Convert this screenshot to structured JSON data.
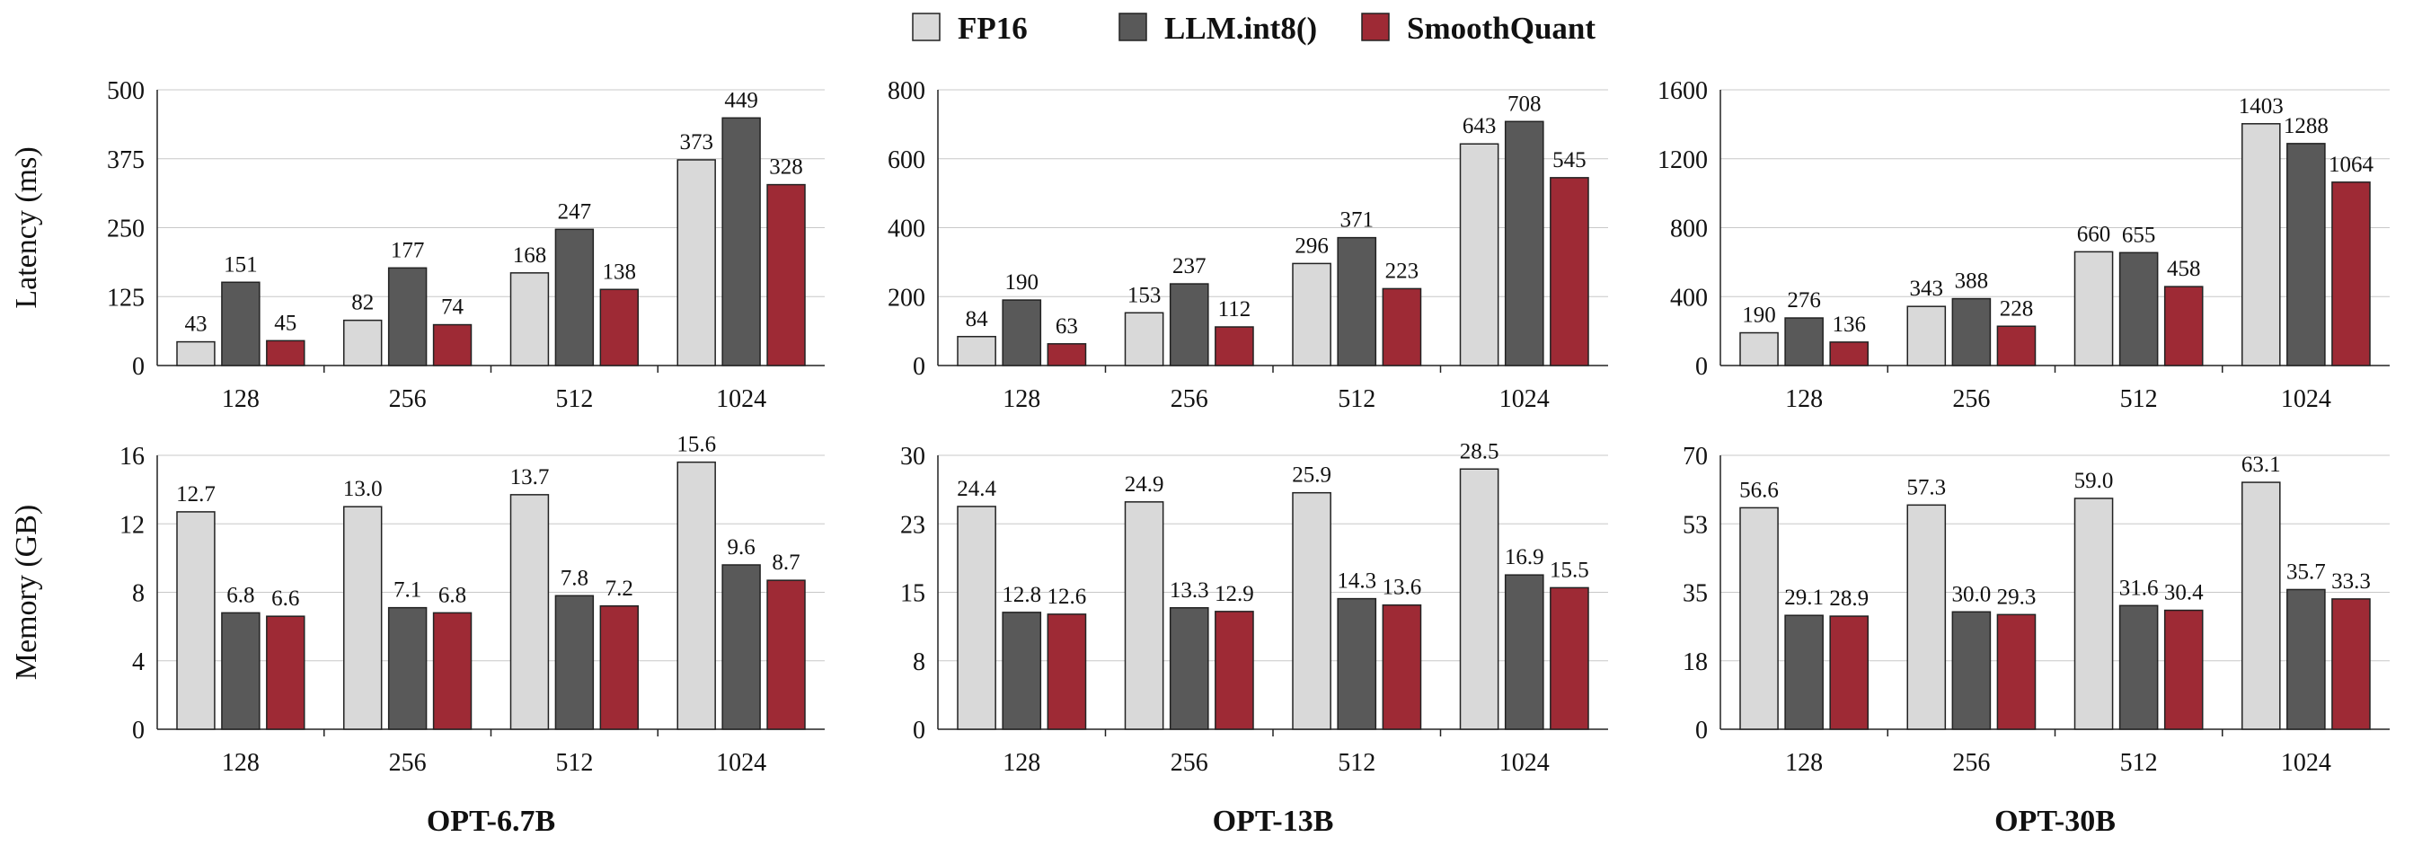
{
  "legend": {
    "items": [
      {
        "name": "FP16",
        "color": "#d9d9d9"
      },
      {
        "name": "LLM.int8()",
        "color": "#595959"
      },
      {
        "name": "SmoothQuant",
        "color": "#9e2a35"
      }
    ]
  },
  "chart_data": [
    {
      "type": "bar",
      "row": "latency",
      "model": "OPT-6.7B",
      "title": "",
      "ylabel": "Latency (ms)",
      "ylim": [
        0,
        500
      ],
      "yticks": [
        0,
        125,
        250,
        375,
        500
      ],
      "ytick_labels": [
        "0",
        "125",
        "250",
        "375",
        "500"
      ],
      "categories": [
        "128",
        "256",
        "512",
        "1024"
      ],
      "series": [
        {
          "name": "FP16",
          "values": [
            43,
            82,
            168,
            373
          ],
          "labels": [
            "43",
            "82",
            "168",
            "373"
          ]
        },
        {
          "name": "LLM.int8()",
          "values": [
            151,
            177,
            247,
            449
          ],
          "labels": [
            "151",
            "177",
            "247",
            "449"
          ]
        },
        {
          "name": "SmoothQuant",
          "values": [
            45,
            74,
            138,
            328
          ],
          "labels": [
            "45",
            "74",
            "138",
            "328"
          ]
        }
      ]
    },
    {
      "type": "bar",
      "row": "latency",
      "model": "OPT-13B",
      "title": "",
      "ylabel": "",
      "ylim": [
        0,
        800
      ],
      "yticks": [
        0,
        200,
        400,
        600,
        800
      ],
      "ytick_labels": [
        "0",
        "200",
        "400",
        "600",
        "800"
      ],
      "categories": [
        "128",
        "256",
        "512",
        "1024"
      ],
      "series": [
        {
          "name": "FP16",
          "values": [
            84,
            153,
            296,
            643
          ],
          "labels": [
            "84",
            "153",
            "296",
            "643"
          ]
        },
        {
          "name": "LLM.int8()",
          "values": [
            190,
            237,
            371,
            708
          ],
          "labels": [
            "190",
            "237",
            "371",
            "708"
          ]
        },
        {
          "name": "SmoothQuant",
          "values": [
            63,
            112,
            223,
            545
          ],
          "labels": [
            "63",
            "112",
            "223",
            "545"
          ]
        }
      ]
    },
    {
      "type": "bar",
      "row": "latency",
      "model": "OPT-30B",
      "title": "",
      "ylabel": "",
      "ylim": [
        0,
        1600
      ],
      "yticks": [
        0,
        400,
        800,
        1200,
        1600
      ],
      "ytick_labels": [
        "0",
        "400",
        "800",
        "1200",
        "1600"
      ],
      "categories": [
        "128",
        "256",
        "512",
        "1024"
      ],
      "series": [
        {
          "name": "FP16",
          "values": [
            190,
            343,
            660,
            1403
          ],
          "labels": [
            "190",
            "343",
            "660",
            "1403"
          ]
        },
        {
          "name": "LLM.int8()",
          "values": [
            276,
            388,
            655,
            1288
          ],
          "labels": [
            "276",
            "388",
            "655",
            "1288"
          ]
        },
        {
          "name": "SmoothQuant",
          "values": [
            136,
            228,
            458,
            1064
          ],
          "labels": [
            "136",
            "228",
            "458",
            "1064"
          ]
        }
      ]
    },
    {
      "type": "bar",
      "row": "memory",
      "model": "OPT-6.7B",
      "title": "OPT-6.7B",
      "ylabel": "Memory (GB)",
      "ylim": [
        0,
        16
      ],
      "yticks": [
        0,
        4,
        8,
        12,
        16
      ],
      "ytick_labels": [
        "0",
        "4",
        "8",
        "12",
        "16"
      ],
      "categories": [
        "128",
        "256",
        "512",
        "1024"
      ],
      "series": [
        {
          "name": "FP16",
          "values": [
            12.7,
            13.0,
            13.7,
            15.6
          ],
          "labels": [
            "12.7",
            "13.0",
            "13.7",
            "15.6"
          ]
        },
        {
          "name": "LLM.int8()",
          "values": [
            6.8,
            7.1,
            7.8,
            9.6
          ],
          "labels": [
            "6.8",
            "7.1",
            "7.8",
            "9.6"
          ]
        },
        {
          "name": "SmoothQuant",
          "values": [
            6.6,
            6.8,
            7.2,
            8.7
          ],
          "labels": [
            "6.6",
            "6.8",
            "7.2",
            "8.7"
          ]
        }
      ]
    },
    {
      "type": "bar",
      "row": "memory",
      "model": "OPT-13B",
      "title": "OPT-13B",
      "ylabel": "",
      "ylim": [
        0,
        30
      ],
      "yticks": [
        0,
        7.5,
        15,
        22.5,
        30
      ],
      "ytick_labels": [
        "0",
        "8",
        "15",
        "23",
        "30"
      ],
      "categories": [
        "128",
        "256",
        "512",
        "1024"
      ],
      "series": [
        {
          "name": "FP16",
          "values": [
            24.4,
            24.9,
            25.9,
            28.5
          ],
          "labels": [
            "24.4",
            "24.9",
            "25.9",
            "28.5"
          ]
        },
        {
          "name": "LLM.int8()",
          "values": [
            12.8,
            13.3,
            14.3,
            16.9
          ],
          "labels": [
            "12.8",
            "13.3",
            "14.3",
            "16.9"
          ]
        },
        {
          "name": "SmoothQuant",
          "values": [
            12.6,
            12.9,
            13.6,
            15.5
          ],
          "labels": [
            "12.6",
            "12.9",
            "13.6",
            "15.5"
          ]
        }
      ]
    },
    {
      "type": "bar",
      "row": "memory",
      "model": "OPT-30B",
      "title": "OPT-30B",
      "ylabel": "",
      "ylim": [
        0,
        70
      ],
      "yticks": [
        0,
        17.5,
        35,
        52.5,
        70
      ],
      "ytick_labels": [
        "0",
        "18",
        "35",
        "53",
        "70"
      ],
      "categories": [
        "128",
        "256",
        "512",
        "1024"
      ],
      "series": [
        {
          "name": "FP16",
          "values": [
            56.6,
            57.3,
            59.0,
            63.1
          ],
          "labels": [
            "56.6",
            "57.3",
            "59.0",
            "63.1"
          ]
        },
        {
          "name": "LLM.int8()",
          "values": [
            29.1,
            30.0,
            31.6,
            35.7
          ],
          "labels": [
            "29.1",
            "30.0",
            "31.6",
            "35.7"
          ]
        },
        {
          "name": "SmoothQuant",
          "values": [
            28.9,
            29.3,
            30.4,
            33.3
          ],
          "labels": [
            "28.9",
            "29.3",
            "30.4",
            "33.3"
          ]
        }
      ]
    }
  ]
}
